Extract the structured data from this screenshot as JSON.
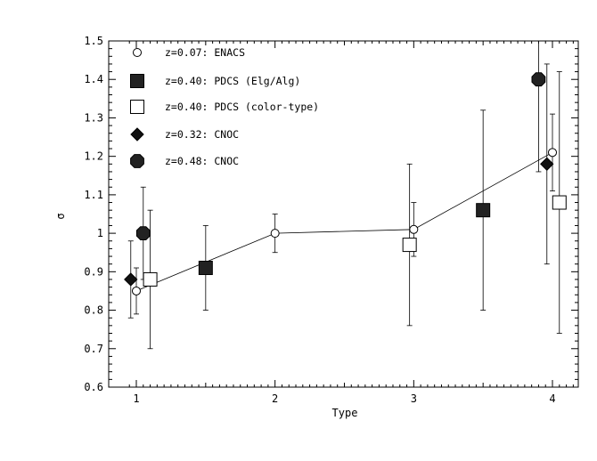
{
  "chart_data": {
    "type": "scatter",
    "title": "",
    "xlabel": "Type",
    "ylabel": "σ",
    "xlim": [
      0.9,
      4.2
    ],
    "ylim": [
      0.6,
      1.5
    ],
    "x_ticks": [
      1,
      2,
      3,
      4
    ],
    "y_ticks": [
      0.6,
      0.7,
      0.8,
      0.9,
      1.0,
      1.1,
      1.2,
      1.3,
      1.4,
      1.5
    ],
    "y_tick_labels": [
      "0.6",
      "0.7",
      "0.8",
      "0.9",
      "1",
      "1.1",
      "1.2",
      "1.3",
      "1.4",
      "1.5"
    ],
    "grid": false,
    "legend_position": "top-left",
    "series": [
      {
        "name": "z=0.07: ENACS",
        "marker": "open-circle",
        "connected": true,
        "points": [
          {
            "x": 1.0,
            "y": 0.85,
            "ylo": 0.79,
            "yhi": 0.91
          },
          {
            "x": 2.0,
            "y": 1.0,
            "ylo": 0.95,
            "yhi": 1.05
          },
          {
            "x": 3.0,
            "y": 1.01,
            "ylo": 0.94,
            "yhi": 1.08
          },
          {
            "x": 4.0,
            "y": 1.21,
            "ylo": 1.11,
            "yhi": 1.31
          }
        ]
      },
      {
        "name": "z=0.40: PDCS (Elg/Alg)",
        "marker": "filled-square",
        "connected": false,
        "points": [
          {
            "x": 1.5,
            "y": 0.91,
            "ylo": 0.8,
            "yhi": 1.02
          },
          {
            "x": 3.5,
            "y": 1.06,
            "ylo": 0.8,
            "yhi": 1.32
          }
        ]
      },
      {
        "name": "z=0.40: PDCS (color-type)",
        "marker": "open-square",
        "connected": false,
        "points": [
          {
            "x": 1.1,
            "y": 0.88,
            "ylo": 0.7,
            "yhi": 1.06
          },
          {
            "x": 2.97,
            "y": 0.97,
            "ylo": 0.76,
            "yhi": 1.18
          },
          {
            "x": 4.05,
            "y": 1.08,
            "ylo": 0.74,
            "yhi": 1.42
          }
        ]
      },
      {
        "name": "z=0.32: CNOC",
        "marker": "filled-diamond",
        "connected": false,
        "points": [
          {
            "x": 0.96,
            "y": 0.88,
            "ylo": 0.78,
            "yhi": 0.98
          },
          {
            "x": 3.96,
            "y": 1.18,
            "ylo": 0.92,
            "yhi": 1.44
          }
        ]
      },
      {
        "name": "z=0.48: CNOC",
        "marker": "filled-octagon",
        "connected": false,
        "points": [
          {
            "x": 1.05,
            "y": 1.0,
            "ylo": 0.88,
            "yhi": 1.12
          },
          {
            "x": 3.9,
            "y": 1.4,
            "ylo": 1.16,
            "yhi": 1.5
          }
        ]
      }
    ]
  }
}
